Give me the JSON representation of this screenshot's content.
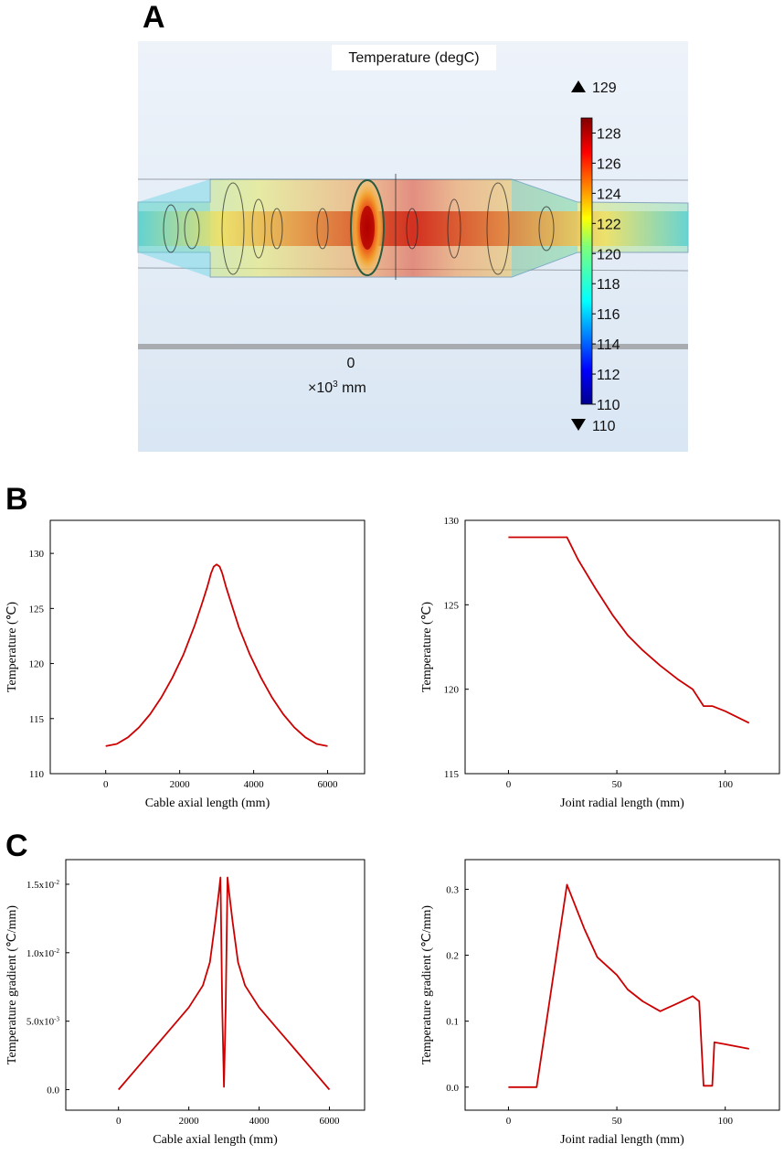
{
  "panel_labels": {
    "a": "A",
    "b": "B",
    "c": "C"
  },
  "sim": {
    "title": "Temperature (degC)",
    "max_label": "129",
    "min_label": "110",
    "colorbar_ticks": [
      "128",
      "126",
      "124",
      "122",
      "120",
      "118",
      "116",
      "114",
      "112",
      "110"
    ],
    "axis_zero": "0",
    "axis_unit_prefix": "×10",
    "axis_unit_exp": "3",
    "axis_unit_suffix": " mm"
  },
  "colors": {
    "line": "#cc0000",
    "axis": "#000000",
    "sim_bg": "#e4eef8"
  },
  "chart_data": [
    {
      "id": "b-left",
      "type": "line",
      "xlabel": "Cable axial length (mm)",
      "ylabel": "Temperature (℃)",
      "xlim": [
        -1500,
        7000
      ],
      "ylim": [
        110,
        133
      ],
      "xticks": [
        0,
        2000,
        4000,
        6000
      ],
      "xticklabels": [
        "0",
        "2000",
        "4000",
        "6000"
      ],
      "yticks": [
        110,
        115,
        120,
        125,
        130
      ],
      "yticklabels": [
        "110",
        "115",
        "120",
        "125",
        "130"
      ],
      "series": [
        {
          "name": "Temperature",
          "x": [
            0,
            300,
            600,
            900,
            1200,
            1500,
            1800,
            2100,
            2400,
            2600,
            2750,
            2850,
            2920,
            3000,
            3080,
            3150,
            3250,
            3400,
            3600,
            3900,
            4200,
            4500,
            4800,
            5100,
            5400,
            5700,
            6000
          ],
          "y": [
            112.5,
            112.7,
            113.3,
            114.2,
            115.4,
            116.9,
            118.7,
            120.8,
            123.4,
            125.4,
            127.0,
            128.2,
            128.8,
            129.0,
            128.8,
            128.2,
            127.0,
            125.4,
            123.3,
            120.8,
            118.7,
            116.9,
            115.4,
            114.2,
            113.3,
            112.7,
            112.5
          ]
        }
      ]
    },
    {
      "id": "b-right",
      "type": "line",
      "xlabel": "Joint radial length (mm)",
      "ylabel": "Temperature (℃)",
      "xlim": [
        -20,
        125
      ],
      "ylim": [
        115,
        130
      ],
      "xticks": [
        0,
        50,
        100
      ],
      "xticklabels": [
        "0",
        "50",
        "100"
      ],
      "yticks": [
        115,
        120,
        125,
        130
      ],
      "yticklabels": [
        "115",
        "120",
        "125",
        "130"
      ],
      "series": [
        {
          "name": "Temperature",
          "x": [
            0,
            27,
            32,
            40,
            48,
            55,
            62,
            70,
            78,
            85,
            90,
            94,
            100,
            111
          ],
          "y": [
            129.0,
            129.0,
            127.7,
            126.0,
            124.4,
            123.2,
            122.3,
            121.4,
            120.6,
            120.0,
            119.0,
            119.0,
            118.7,
            118.0
          ]
        }
      ]
    },
    {
      "id": "c-left",
      "type": "line",
      "xlabel": "Cable axial length (mm)",
      "ylabel": "Temperature gradient (℃/mm)",
      "xlim": [
        -1500,
        7000
      ],
      "ylim": [
        -0.0015,
        0.0168
      ],
      "xticks": [
        0,
        2000,
        4000,
        6000
      ],
      "xticklabels": [
        "0",
        "2000",
        "4000",
        "6000"
      ],
      "yticks": [
        0,
        0.005,
        0.01,
        0.015
      ],
      "yticklabels": [
        "0.0",
        "5.0x10",
        "1.0x10",
        "1.5x10"
      ],
      "ytickexp": [
        "",
        "-3",
        "-2",
        "-2"
      ],
      "series": [
        {
          "name": "Gradient",
          "x": [
            0,
            500,
            1000,
            1500,
            2000,
            2400,
            2600,
            2750,
            2850,
            2900,
            2950,
            3000,
            3050,
            3100,
            3150,
            3250,
            3400,
            3600,
            4000,
            4500,
            5000,
            5500,
            6000
          ],
          "y": [
            0,
            0.0015,
            0.003,
            0.0045,
            0.006,
            0.0076,
            0.0093,
            0.0122,
            0.0143,
            0.0155,
            0.006,
            0.0002,
            0.006,
            0.0155,
            0.0143,
            0.0122,
            0.0093,
            0.0076,
            0.006,
            0.0045,
            0.003,
            0.0015,
            0
          ]
        }
      ]
    },
    {
      "id": "c-right",
      "type": "line",
      "xlabel": "Joint radial length (mm)",
      "ylabel": "Temperature gradient (℃/mm)",
      "xlim": [
        -20,
        125
      ],
      "ylim": [
        -0.035,
        0.345
      ],
      "xticks": [
        0,
        50,
        100
      ],
      "xticklabels": [
        "0",
        "50",
        "100"
      ],
      "yticks": [
        0,
        0.1,
        0.2,
        0.3
      ],
      "yticklabels": [
        "0.0",
        "0.1",
        "0.2",
        "0.3"
      ],
      "series": [
        {
          "name": "Gradient",
          "x": [
            0,
            13,
            27,
            35,
            41,
            50,
            55,
            62,
            70,
            78,
            85,
            88,
            90,
            92,
            94,
            95,
            100,
            111
          ],
          "y": [
            0,
            0,
            0.307,
            0.24,
            0.197,
            0.17,
            0.148,
            0.13,
            0.115,
            0.127,
            0.138,
            0.13,
            0.002,
            0.002,
            0.002,
            0.068,
            0.065,
            0.058
          ]
        }
      ]
    }
  ]
}
